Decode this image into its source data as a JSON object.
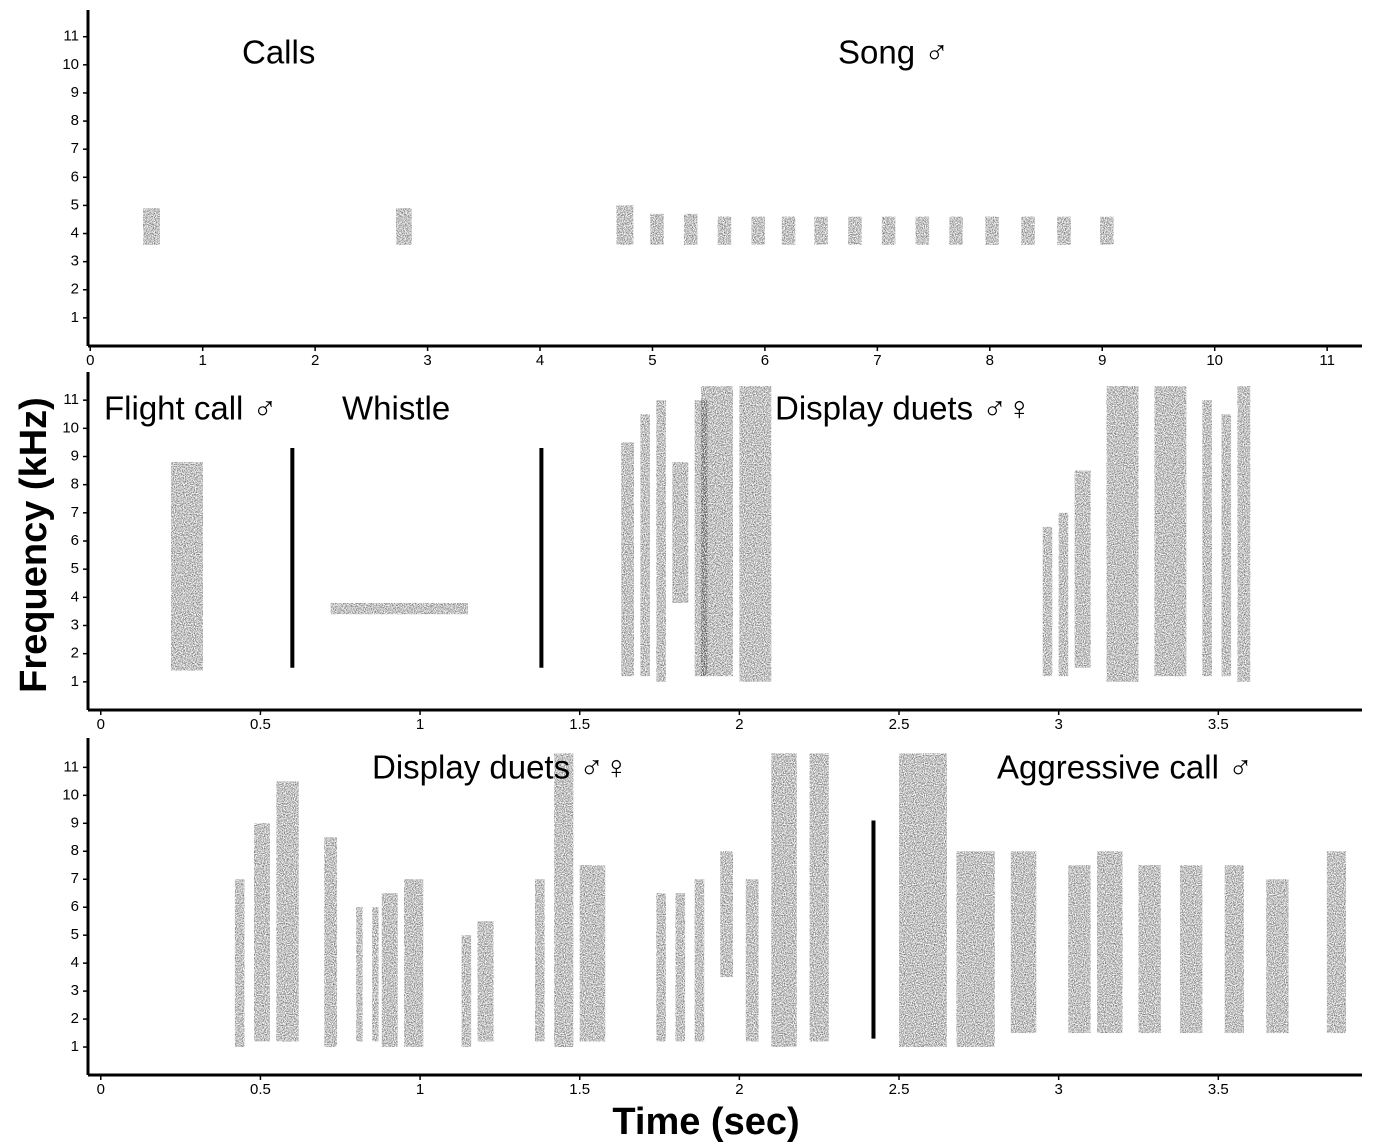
{
  "figure": {
    "ylabel": "Frequency (kHz)",
    "xlabel": "Time (sec)"
  },
  "chart_data": [
    {
      "type": "spectrogram",
      "color": "#3a3a3a",
      "annotations": [
        "Calls",
        "Song ♂"
      ],
      "xlim": [
        -0.02,
        11.31
      ],
      "ylim": [
        0,
        11.95
      ],
      "xticks": [
        0,
        1,
        2,
        3,
        4,
        5,
        6,
        7,
        8,
        9,
        10,
        11
      ],
      "yticks": [
        1,
        2,
        3,
        4,
        5,
        6,
        7,
        8,
        9,
        10,
        11
      ],
      "syllables": [
        [
          0.47,
          0.62,
          3.6,
          4.9
        ],
        [
          2.72,
          2.86,
          3.6,
          4.9
        ],
        [
          4.68,
          4.83,
          3.6,
          5.0
        ],
        [
          4.98,
          5.1,
          3.6,
          4.7
        ],
        [
          5.28,
          5.4,
          3.6,
          4.7
        ],
        [
          5.58,
          5.7,
          3.6,
          4.6
        ],
        [
          5.88,
          6.0,
          3.6,
          4.6
        ],
        [
          6.15,
          6.27,
          3.6,
          4.6
        ],
        [
          6.44,
          6.56,
          3.6,
          4.6
        ],
        [
          6.74,
          6.86,
          3.6,
          4.6
        ],
        [
          7.04,
          7.16,
          3.6,
          4.6
        ],
        [
          7.34,
          7.46,
          3.6,
          4.6
        ],
        [
          7.64,
          7.76,
          3.6,
          4.6
        ],
        [
          7.96,
          8.08,
          3.6,
          4.6
        ],
        [
          8.28,
          8.4,
          3.6,
          4.6
        ],
        [
          8.6,
          8.72,
          3.6,
          4.6
        ],
        [
          8.98,
          9.1,
          3.6,
          4.6
        ]
      ],
      "dividers": []
    },
    {
      "type": "spectrogram",
      "color": "#3a3a3a",
      "annotations": [
        "Flight call ♂",
        "Whistle",
        "Display duets ♂♀"
      ],
      "xlim": [
        -0.04,
        3.95
      ],
      "ylim": [
        0,
        12.0
      ],
      "xticks": [
        0,
        0.5,
        1,
        1.5,
        2,
        2.5,
        3,
        3.5
      ],
      "yticks": [
        1,
        2,
        3,
        4,
        5,
        6,
        7,
        8,
        9,
        10,
        11
      ],
      "syllables": [
        [
          0.22,
          0.32,
          1.4,
          8.8
        ],
        [
          0.72,
          1.15,
          3.4,
          3.8
        ],
        [
          1.63,
          1.67,
          1.2,
          9.5
        ],
        [
          1.69,
          1.72,
          1.2,
          10.5
        ],
        [
          1.74,
          1.77,
          1.0,
          11.0
        ],
        [
          1.79,
          1.84,
          3.8,
          8.8
        ],
        [
          1.86,
          1.9,
          1.2,
          11.0
        ],
        [
          1.88,
          1.98,
          1.2,
          11.5
        ],
        [
          2.0,
          2.1,
          1.0,
          11.5
        ],
        [
          2.95,
          2.98,
          1.2,
          6.5
        ],
        [
          3.0,
          3.03,
          1.2,
          7.0
        ],
        [
          3.05,
          3.1,
          1.5,
          8.5
        ],
        [
          3.15,
          3.25,
          1.0,
          11.5
        ],
        [
          3.3,
          3.4,
          1.2,
          11.5
        ],
        [
          3.45,
          3.48,
          1.2,
          11.0
        ],
        [
          3.51,
          3.54,
          1.2,
          10.5
        ],
        [
          3.56,
          3.6,
          1.0,
          11.5
        ]
      ],
      "dividers": [
        [
          0.6,
          1.5,
          9.3
        ],
        [
          1.38,
          1.5,
          9.3
        ]
      ]
    },
    {
      "type": "spectrogram",
      "color": "#3a3a3a",
      "annotations": [
        "Display duets ♂♀",
        "Aggressive call ♂"
      ],
      "xlim": [
        -0.04,
        3.95
      ],
      "ylim": [
        0,
        12.05
      ],
      "xticks": [
        0,
        0.5,
        1,
        1.5,
        2,
        2.5,
        3,
        3.5
      ],
      "yticks": [
        1,
        2,
        3,
        4,
        5,
        6,
        7,
        8,
        9,
        10,
        11
      ],
      "syllables": [
        [
          0.42,
          0.45,
          1.0,
          7.0
        ],
        [
          0.48,
          0.53,
          1.2,
          9.0
        ],
        [
          0.55,
          0.62,
          1.2,
          10.5
        ],
        [
          0.7,
          0.74,
          1.0,
          8.5
        ],
        [
          0.8,
          0.82,
          1.2,
          6.0
        ],
        [
          0.85,
          0.87,
          1.2,
          6.0
        ],
        [
          0.88,
          0.93,
          1.0,
          6.5
        ],
        [
          0.95,
          1.01,
          1.0,
          7.0
        ],
        [
          1.13,
          1.16,
          1.0,
          5.0
        ],
        [
          1.18,
          1.23,
          1.2,
          5.5
        ],
        [
          1.36,
          1.39,
          1.2,
          7.0
        ],
        [
          1.42,
          1.48,
          1.0,
          11.5
        ],
        [
          1.5,
          1.58,
          1.2,
          7.5
        ],
        [
          1.74,
          1.77,
          1.2,
          6.5
        ],
        [
          1.8,
          1.83,
          1.2,
          6.5
        ],
        [
          1.86,
          1.89,
          1.2,
          7.0
        ],
        [
          1.94,
          1.98,
          3.5,
          8.0
        ],
        [
          2.02,
          2.06,
          1.2,
          7.0
        ],
        [
          2.1,
          2.18,
          1.0,
          11.5
        ],
        [
          2.22,
          2.28,
          1.2,
          11.5
        ],
        [
          2.5,
          2.65,
          1.0,
          11.5
        ],
        [
          2.68,
          2.8,
          1.0,
          8.0
        ],
        [
          2.85,
          2.93,
          1.5,
          8.0
        ],
        [
          3.03,
          3.1,
          1.5,
          7.5
        ],
        [
          3.12,
          3.2,
          1.5,
          8.0
        ],
        [
          3.25,
          3.32,
          1.5,
          7.5
        ],
        [
          3.38,
          3.45,
          1.5,
          7.5
        ],
        [
          3.52,
          3.58,
          1.5,
          7.5
        ],
        [
          3.65,
          3.72,
          1.5,
          7.0
        ],
        [
          3.84,
          3.9,
          1.5,
          8.0
        ]
      ],
      "dividers": [
        [
          2.42,
          1.3,
          9.1
        ]
      ]
    }
  ]
}
